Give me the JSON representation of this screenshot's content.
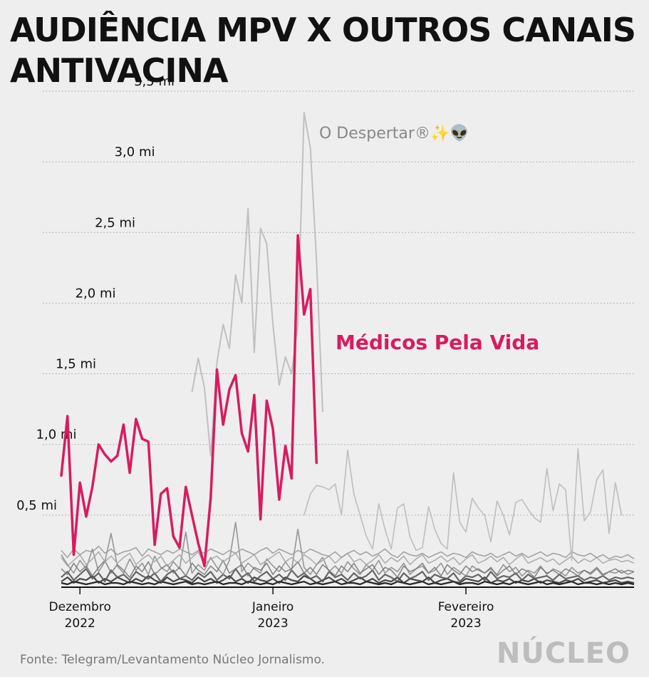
{
  "chart_data": {
    "type": "line",
    "title": "AUDIÊNCIA MPV X OUTROS CANAIS ANTIVACINA",
    "ylim": [
      0,
      3.5
    ],
    "y_ticks": [
      {
        "value": 0.5,
        "label": "0,5 mi"
      },
      {
        "value": 1.0,
        "label": "1,0 mi"
      },
      {
        "value": 1.5,
        "label": "1,5 mi"
      },
      {
        "value": 2.0,
        "label": "2,0 mi"
      },
      {
        "value": 2.5,
        "label": "2,5 mi"
      },
      {
        "value": 3.0,
        "label": "3,0 mi"
      },
      {
        "value": 3.5,
        "label": "3,5 mi"
      }
    ],
    "xlim": [
      "2022-11-28",
      "2023-02-28"
    ],
    "x_ticks": [
      {
        "date": "2022-12-01",
        "month": "Dezembro",
        "year": "2022"
      },
      {
        "date": "2023-01-01",
        "month": "Janeiro",
        "year": "2023"
      },
      {
        "date": "2023-02-01",
        "month": "Fevereiro",
        "year": "2023"
      }
    ],
    "grid": "horizontal dotted",
    "highlight_color": "#d81b60",
    "other_color": "#b0b0b0",
    "series": [
      {
        "name": "Médicos Pela Vida",
        "start_date": "2022-11-28",
        "values": [
          0.78,
          1.2,
          0.22,
          0.73,
          0.49,
          0.7,
          1.0,
          0.93,
          0.88,
          0.92,
          1.14,
          0.8,
          1.18,
          1.04,
          1.02,
          0.29,
          0.65,
          0.69,
          0.35,
          0.27,
          0.7,
          0.5,
          0.3,
          0.14,
          0.62,
          1.53,
          1.14,
          1.39,
          1.49,
          1.08,
          0.95,
          1.35,
          0.47,
          1.31,
          1.11,
          0.61,
          0.99,
          0.76,
          2.48,
          1.92,
          2.1,
          0.87
        ]
      },
      {
        "name": "O Despertar®✨👽",
        "start_date": "2022-12-19",
        "values": [
          1.37,
          1.61,
          1.4,
          0.92,
          1.58,
          1.85,
          1.68,
          2.2,
          2.0,
          2.67,
          1.65,
          2.53,
          2.42,
          1.85,
          1.42,
          1.62,
          1.5,
          1.85,
          3.35,
          3.1,
          2.3,
          1.23
        ]
      },
      {
        "name": "",
        "start_date": "2023-01-06",
        "values": [
          0.5,
          0.65,
          0.71,
          0.7,
          0.68,
          0.72,
          0.5,
          0.96,
          0.65,
          0.5,
          0.35,
          0.26,
          0.58,
          0.4,
          0.26,
          0.55,
          0.58,
          0.35,
          0.25,
          0.27,
          0.56,
          0.4,
          0.3,
          0.26,
          0.8,
          0.45,
          0.38,
          0.62,
          0.55,
          0.5,
          0.31,
          0.6,
          0.5,
          0.36,
          0.59,
          0.61,
          0.54,
          0.48,
          0.45,
          0.83,
          0.53,
          0.72,
          0.68,
          0.18,
          0.97,
          0.46,
          0.52,
          0.75,
          0.82,
          0.37,
          0.73,
          0.5
        ]
      },
      {
        "name": "",
        "start_date": "2022-11-28",
        "values": [
          0.25,
          0.2,
          0.26,
          0.22,
          0.25,
          0.24,
          0.28,
          0.23,
          0.26,
          0.22,
          0.24,
          0.25,
          0.27,
          0.21,
          0.26,
          0.24,
          0.22,
          0.25,
          0.23,
          0.26,
          0.24,
          0.22,
          0.25,
          0.23,
          0.26,
          0.24,
          0.22,
          0.25,
          0.23,
          0.26,
          0.24,
          0.22,
          0.25,
          0.27,
          0.23,
          0.26,
          0.24,
          0.22,
          0.25,
          0.23,
          0.26,
          0.24,
          0.22,
          0.21,
          0.24,
          0.2,
          0.23,
          0.25,
          0.22,
          0.24,
          0.21,
          0.23,
          0.26,
          0.22,
          0.2,
          0.24,
          0.22,
          0.21,
          0.23,
          0.2,
          0.22,
          0.24,
          0.21,
          0.23,
          0.22,
          0.2,
          0.24,
          0.22,
          0.21,
          0.23,
          0.2,
          0.22,
          0.24,
          0.21,
          0.23,
          0.2,
          0.22,
          0.24,
          0.21,
          0.23,
          0.22,
          0.2,
          0.24,
          0.22,
          0.21,
          0.23,
          0.2,
          0.22,
          0.19,
          0.21,
          0.2,
          0.22,
          0.19
        ]
      },
      {
        "name": "",
        "start_date": "2022-11-28",
        "values": [
          0.2,
          0.14,
          0.18,
          0.22,
          0.15,
          0.19,
          0.24,
          0.17,
          0.21,
          0.16,
          0.2,
          0.23,
          0.15,
          0.19,
          0.22,
          0.17,
          0.21,
          0.14,
          0.18,
          0.22,
          0.16,
          0.2,
          0.24,
          0.15,
          0.19,
          0.21,
          0.17,
          0.2,
          0.23,
          0.16,
          0.19,
          0.22,
          0.15,
          0.18,
          0.21,
          0.24,
          0.17,
          0.2,
          0.16,
          0.22,
          0.19,
          0.15,
          0.18,
          0.21,
          0.16,
          0.2,
          0.23,
          0.17,
          0.19,
          0.15,
          0.18,
          0.22,
          0.16,
          0.2,
          0.17,
          0.21,
          0.15,
          0.19,
          0.22,
          0.16,
          0.18,
          0.21,
          0.17,
          0.2,
          0.15,
          0.19,
          0.22,
          0.16,
          0.18,
          0.21,
          0.17,
          0.2,
          0.15,
          0.19,
          0.22,
          0.16,
          0.18,
          0.2,
          0.17,
          0.19,
          0.15,
          0.18,
          0.21,
          0.16,
          0.19,
          0.17,
          0.2,
          0.16,
          0.18,
          0.19,
          0.17,
          0.18,
          0.16
        ]
      },
      {
        "name": "",
        "start_date": "2022-11-28",
        "values": [
          0.12,
          0.08,
          0.16,
          0.1,
          0.14,
          0.07,
          0.13,
          0.18,
          0.09,
          0.15,
          0.11,
          0.06,
          0.14,
          0.1,
          0.17,
          0.08,
          0.12,
          0.15,
          0.09,
          0.13,
          0.07,
          0.16,
          0.11,
          0.08,
          0.14,
          0.1,
          0.18,
          0.09,
          0.12,
          0.15,
          0.07,
          0.13,
          0.11,
          0.16,
          0.08,
          0.14,
          0.1,
          0.12,
          0.17,
          0.09,
          0.13,
          0.08,
          0.15,
          0.11,
          0.07,
          0.14,
          0.1,
          0.16,
          0.09,
          0.12,
          0.15,
          0.08,
          0.13,
          0.11,
          0.06,
          0.14,
          0.1,
          0.12,
          0.16,
          0.09,
          0.13,
          0.07,
          0.15,
          0.11,
          0.08,
          0.14,
          0.1,
          0.12,
          0.09,
          0.13,
          0.07,
          0.11,
          0.14,
          0.08,
          0.12,
          0.1,
          0.06,
          0.13,
          0.09,
          0.11,
          0.08,
          0.12,
          0.1,
          0.07,
          0.11,
          0.09,
          0.13,
          0.08,
          0.1,
          0.12,
          0.09,
          0.11,
          0.1
        ]
      },
      {
        "name": "",
        "start_date": "2022-11-28",
        "values": [
          0.22,
          0.15,
          0.09,
          0.18,
          0.12,
          0.26,
          0.1,
          0.17,
          0.37,
          0.14,
          0.09,
          0.19,
          0.11,
          0.16,
          0.08,
          0.21,
          0.13,
          0.1,
          0.17,
          0.12,
          0.38,
          0.09,
          0.15,
          0.11,
          0.2,
          0.13,
          0.08,
          0.18,
          0.45,
          0.1,
          0.16,
          0.12,
          0.09,
          0.19,
          0.14,
          0.1,
          0.17,
          0.11,
          0.4,
          0.13,
          0.08,
          0.15,
          0.2,
          0.1,
          0.14,
          0.09,
          0.17,
          0.12,
          0.08,
          0.15,
          0.11,
          0.18,
          0.09,
          0.13,
          0.1,
          0.16,
          0.08,
          0.12,
          0.14,
          0.09,
          0.11,
          0.16,
          0.08,
          0.13,
          0.1,
          0.07,
          0.14,
          0.11,
          0.09,
          0.12,
          0.08,
          0.15,
          0.1,
          0.13,
          0.07,
          0.11,
          0.09,
          0.14,
          0.08,
          0.12,
          0.1,
          0.07,
          0.13,
          0.09,
          0.11,
          0.08,
          0.12,
          0.07,
          0.1,
          0.09,
          0.11,
          0.08,
          0.1
        ]
      },
      {
        "name": "",
        "start_date": "2022-11-28",
        "values": [
          0.06,
          0.1,
          0.04,
          0.08,
          0.12,
          0.05,
          0.09,
          0.03,
          0.11,
          0.06,
          0.08,
          0.04,
          0.1,
          0.07,
          0.05,
          0.09,
          0.03,
          0.08,
          0.11,
          0.05,
          0.07,
          0.04,
          0.09,
          0.06,
          0.1,
          0.04,
          0.08,
          0.05,
          0.12,
          0.06,
          0.09,
          0.03,
          0.07,
          0.1,
          0.05,
          0.08,
          0.04,
          0.11,
          0.06,
          0.09,
          0.05,
          0.07,
          0.03,
          0.1,
          0.06,
          0.08,
          0.04,
          0.09,
          0.05,
          0.07,
          0.11,
          0.04,
          0.08,
          0.06,
          0.03,
          0.09,
          0.05,
          0.07,
          0.1,
          0.04,
          0.08,
          0.06,
          0.05,
          0.09,
          0.03,
          0.07,
          0.06,
          0.08,
          0.04,
          0.1,
          0.05,
          0.07,
          0.06,
          0.09,
          0.04,
          0.08,
          0.05,
          0.06,
          0.07,
          0.04,
          0.08,
          0.05,
          0.06,
          0.07,
          0.04,
          0.06,
          0.05,
          0.07,
          0.04,
          0.06,
          0.05,
          0.06,
          0.05
        ]
      },
      {
        "name": "",
        "start_date": "2022-11-28",
        "values": [
          0.03,
          0.06,
          0.02,
          0.05,
          0.04,
          0.07,
          0.02,
          0.05,
          0.03,
          0.06,
          0.04,
          0.02,
          0.05,
          0.03,
          0.07,
          0.04,
          0.02,
          0.06,
          0.03,
          0.05,
          0.04,
          0.02,
          0.06,
          0.03,
          0.05,
          0.02,
          0.04,
          0.07,
          0.03,
          0.05,
          0.02,
          0.06,
          0.04,
          0.03,
          0.05,
          0.02,
          0.06,
          0.04,
          0.03,
          0.07,
          0.05,
          0.02,
          0.04,
          0.06,
          0.03,
          0.05,
          0.02,
          0.04,
          0.06,
          0.03,
          0.05,
          0.02,
          0.04,
          0.03,
          0.06,
          0.02,
          0.05,
          0.04,
          0.03,
          0.06,
          0.02,
          0.04,
          0.05,
          0.03,
          0.02,
          0.05,
          0.04,
          0.03,
          0.06,
          0.02,
          0.04,
          0.03,
          0.05,
          0.02,
          0.04,
          0.03,
          0.05,
          0.02,
          0.04,
          0.03,
          0.02,
          0.04,
          0.03,
          0.05,
          0.02,
          0.03,
          0.04,
          0.02,
          0.03,
          0.04,
          0.02,
          0.03,
          0.02
        ]
      },
      {
        "name": "",
        "start_date": "2022-11-28",
        "values": [
          0.02,
          0.01,
          0.03,
          0.02,
          0.01,
          0.02,
          0.03,
          0.01,
          0.02,
          0.02,
          0.01,
          0.03,
          0.02,
          0.01,
          0.02,
          0.01,
          0.03,
          0.02,
          0.01,
          0.02,
          0.03,
          0.01,
          0.02,
          0.01,
          0.02,
          0.03,
          0.01,
          0.02,
          0.02,
          0.01,
          0.03,
          0.02,
          0.01,
          0.02,
          0.01,
          0.03,
          0.02,
          0.01,
          0.02,
          0.03,
          0.01,
          0.02,
          0.01,
          0.02,
          0.03,
          0.01,
          0.02,
          0.02,
          0.01,
          0.03,
          0.02,
          0.01,
          0.02,
          0.01,
          0.03,
          0.02,
          0.01,
          0.02,
          0.03,
          0.01,
          0.02,
          0.01,
          0.02,
          0.03,
          0.01,
          0.02,
          0.02,
          0.01,
          0.03,
          0.02,
          0.01,
          0.02,
          0.01,
          0.03,
          0.02,
          0.01,
          0.02,
          0.03,
          0.01,
          0.02,
          0.01,
          0.02,
          0.03,
          0.01,
          0.02,
          0.02,
          0.01,
          0.02,
          0.01,
          0.02,
          0.01,
          0.02,
          0.01
        ]
      }
    ]
  },
  "source": "Fonte: Telegram/Levantamento Núcleo Jornalismo.",
  "logo_text": "NÚCLEO"
}
